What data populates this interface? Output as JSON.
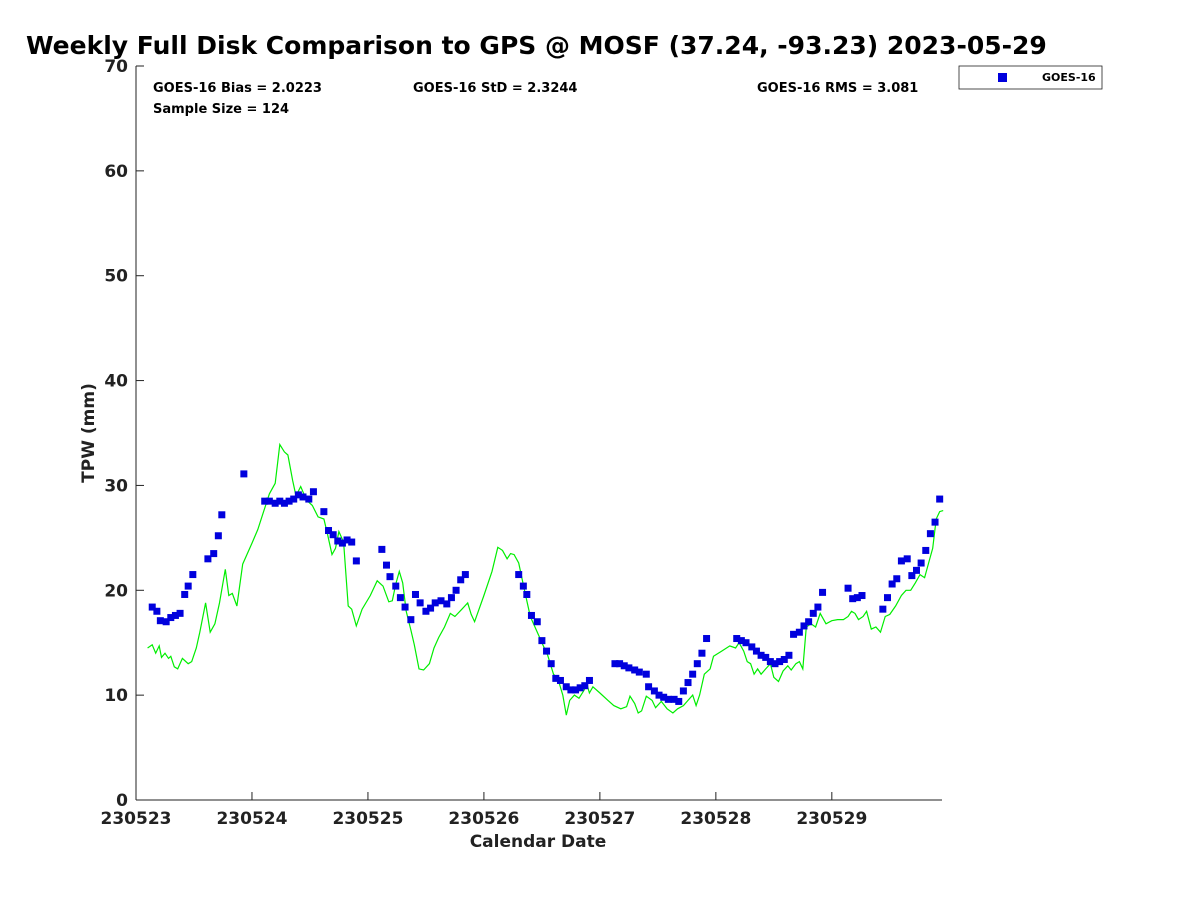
{
  "chart_data": {
    "type": "scatter",
    "title": "Weekly Full Disk Comparison to GPS @ MOSF (37.24, -93.23) 2023-05-29",
    "xlabel": "Calendar Date",
    "ylabel": "TPW (mm)",
    "ylim": [
      0,
      70
    ],
    "xlim": [
      0,
      6.95
    ],
    "yticks": [
      0,
      10,
      20,
      30,
      40,
      50,
      60,
      70
    ],
    "xticks": [
      {
        "x": 0,
        "label": "230523"
      },
      {
        "x": 1,
        "label": "230524"
      },
      {
        "x": 2,
        "label": "230525"
      },
      {
        "x": 3,
        "label": "230526"
      },
      {
        "x": 4,
        "label": "230527"
      },
      {
        "x": 5,
        "label": "230528"
      },
      {
        "x": 6,
        "label": "230529"
      }
    ],
    "stats": {
      "bias": "GOES-16 Bias = 2.0223",
      "std": "GOES-16 StD = 2.3244",
      "rms": "GOES-16 RMS = 3.081",
      "sample": "Sample Size = 124"
    },
    "legend": {
      "position": "top-right",
      "entries": [
        "GOES-16"
      ]
    },
    "grid": false,
    "colors": {
      "goes": "#0000dd",
      "gps": "#00ee00"
    },
    "series": [
      {
        "name": "GOES-16",
        "marker": "square",
        "points": [
          [
            0.14,
            18.4
          ],
          [
            0.18,
            18.0
          ],
          [
            0.21,
            17.1
          ],
          [
            0.26,
            17.0
          ],
          [
            0.3,
            17.4
          ],
          [
            0.34,
            17.6
          ],
          [
            0.38,
            17.8
          ],
          [
            0.42,
            19.6
          ],
          [
            0.45,
            20.4
          ],
          [
            0.49,
            21.5
          ],
          [
            0.62,
            23.0
          ],
          [
            0.67,
            23.5
          ],
          [
            0.71,
            25.2
          ],
          [
            0.74,
            27.2
          ],
          [
            0.93,
            31.1
          ],
          [
            1.11,
            28.5
          ],
          [
            1.15,
            28.5
          ],
          [
            1.2,
            28.3
          ],
          [
            1.24,
            28.5
          ],
          [
            1.28,
            28.3
          ],
          [
            1.32,
            28.5
          ],
          [
            1.36,
            28.7
          ],
          [
            1.4,
            29.1
          ],
          [
            1.44,
            28.9
          ],
          [
            1.49,
            28.7
          ],
          [
            1.53,
            29.4
          ],
          [
            1.62,
            27.5
          ],
          [
            1.66,
            25.7
          ],
          [
            1.7,
            25.3
          ],
          [
            1.74,
            24.7
          ],
          [
            1.78,
            24.5
          ],
          [
            1.82,
            24.8
          ],
          [
            1.86,
            24.6
          ],
          [
            1.9,
            22.8
          ],
          [
            2.12,
            23.9
          ],
          [
            2.16,
            22.4
          ],
          [
            2.19,
            21.3
          ],
          [
            2.24,
            20.4
          ],
          [
            2.28,
            19.3
          ],
          [
            2.32,
            18.4
          ],
          [
            2.37,
            17.2
          ],
          [
            2.41,
            19.6
          ],
          [
            2.45,
            18.8
          ],
          [
            2.5,
            18.0
          ],
          [
            2.54,
            18.3
          ],
          [
            2.58,
            18.8
          ],
          [
            2.63,
            19.0
          ],
          [
            2.68,
            18.7
          ],
          [
            2.72,
            19.3
          ],
          [
            2.76,
            20.0
          ],
          [
            2.8,
            21.0
          ],
          [
            2.84,
            21.5
          ],
          [
            3.3,
            21.5
          ],
          [
            3.34,
            20.4
          ],
          [
            3.37,
            19.6
          ],
          [
            3.41,
            17.6
          ],
          [
            3.46,
            17.0
          ],
          [
            3.5,
            15.2
          ],
          [
            3.54,
            14.2
          ],
          [
            3.58,
            13.0
          ],
          [
            3.62,
            11.6
          ],
          [
            3.66,
            11.4
          ],
          [
            3.71,
            10.8
          ],
          [
            3.75,
            10.5
          ],
          [
            3.79,
            10.5
          ],
          [
            3.83,
            10.7
          ],
          [
            3.87,
            10.9
          ],
          [
            3.91,
            11.4
          ],
          [
            4.13,
            13.0
          ],
          [
            4.17,
            13.0
          ],
          [
            4.21,
            12.8
          ],
          [
            4.25,
            12.6
          ],
          [
            4.3,
            12.4
          ],
          [
            4.34,
            12.2
          ],
          [
            4.4,
            12.0
          ],
          [
            4.42,
            10.8
          ],
          [
            4.47,
            10.4
          ],
          [
            4.51,
            10.0
          ],
          [
            4.55,
            9.8
          ],
          [
            4.59,
            9.6
          ],
          [
            4.64,
            9.6
          ],
          [
            4.68,
            9.4
          ],
          [
            4.72,
            10.4
          ],
          [
            4.76,
            11.2
          ],
          [
            4.8,
            12.0
          ],
          [
            4.84,
            13.0
          ],
          [
            4.88,
            14.0
          ],
          [
            4.92,
            15.4
          ],
          [
            5.18,
            15.4
          ],
          [
            5.22,
            15.2
          ],
          [
            5.26,
            15.0
          ],
          [
            5.31,
            14.6
          ],
          [
            5.35,
            14.2
          ],
          [
            5.39,
            13.8
          ],
          [
            5.43,
            13.6
          ],
          [
            5.47,
            13.2
          ],
          [
            5.51,
            13.0
          ],
          [
            5.55,
            13.2
          ],
          [
            5.59,
            13.4
          ],
          [
            5.63,
            13.8
          ],
          [
            5.67,
            15.8
          ],
          [
            5.72,
            16.0
          ],
          [
            5.76,
            16.6
          ],
          [
            5.8,
            17.0
          ],
          [
            5.84,
            17.8
          ],
          [
            5.88,
            18.4
          ],
          [
            5.92,
            19.8
          ],
          [
            6.14,
            20.2
          ],
          [
            6.18,
            19.2
          ],
          [
            6.22,
            19.3
          ],
          [
            6.26,
            19.5
          ],
          [
            6.44,
            18.2
          ],
          [
            6.48,
            19.3
          ],
          [
            6.52,
            20.6
          ],
          [
            6.56,
            21.1
          ],
          [
            6.6,
            22.8
          ],
          [
            6.65,
            23.0
          ],
          [
            6.69,
            21.4
          ],
          [
            6.73,
            21.9
          ],
          [
            6.77,
            22.6
          ],
          [
            6.81,
            23.8
          ],
          [
            6.85,
            25.4
          ],
          [
            6.89,
            26.5
          ],
          [
            6.93,
            28.7
          ]
        ]
      },
      {
        "name": "GPS",
        "marker": "line",
        "points": [
          [
            0.1,
            14.5
          ],
          [
            0.14,
            14.8
          ],
          [
            0.17,
            14.0
          ],
          [
            0.2,
            14.7
          ],
          [
            0.22,
            13.6
          ],
          [
            0.25,
            14.0
          ],
          [
            0.28,
            13.5
          ],
          [
            0.3,
            13.7
          ],
          [
            0.33,
            12.7
          ],
          [
            0.36,
            12.5
          ],
          [
            0.4,
            13.5
          ],
          [
            0.45,
            13.0
          ],
          [
            0.48,
            13.2
          ],
          [
            0.52,
            14.5
          ],
          [
            0.55,
            16.0
          ],
          [
            0.6,
            18.8
          ],
          [
            0.64,
            16.0
          ],
          [
            0.68,
            16.8
          ],
          [
            0.72,
            18.8
          ],
          [
            0.77,
            22.0
          ],
          [
            0.8,
            19.5
          ],
          [
            0.83,
            19.7
          ],
          [
            0.87,
            18.5
          ],
          [
            0.92,
            22.5
          ],
          [
            1.0,
            24.5
          ],
          [
            1.05,
            25.8
          ],
          [
            1.1,
            27.5
          ],
          [
            1.15,
            29.2
          ],
          [
            1.2,
            30.2
          ],
          [
            1.24,
            33.9
          ],
          [
            1.28,
            33.2
          ],
          [
            1.31,
            32.9
          ],
          [
            1.35,
            30.5
          ],
          [
            1.38,
            29.0
          ],
          [
            1.42,
            29.9
          ],
          [
            1.47,
            28.6
          ],
          [
            1.52,
            28.1
          ],
          [
            1.57,
            27.0
          ],
          [
            1.62,
            26.8
          ],
          [
            1.65,
            25.4
          ],
          [
            1.69,
            23.4
          ],
          [
            1.72,
            24.0
          ],
          [
            1.75,
            25.6
          ],
          [
            1.79,
            24.6
          ],
          [
            1.83,
            18.5
          ],
          [
            1.86,
            18.2
          ],
          [
            1.9,
            16.6
          ],
          [
            1.95,
            18.2
          ],
          [
            2.02,
            19.5
          ],
          [
            2.08,
            20.9
          ],
          [
            2.13,
            20.4
          ],
          [
            2.18,
            18.9
          ],
          [
            2.21,
            19.0
          ],
          [
            2.24,
            20.6
          ],
          [
            2.27,
            21.8
          ],
          [
            2.3,
            20.7
          ],
          [
            2.33,
            18.0
          ],
          [
            2.37,
            16.2
          ],
          [
            2.4,
            14.8
          ],
          [
            2.44,
            12.5
          ],
          [
            2.48,
            12.4
          ],
          [
            2.53,
            13.0
          ],
          [
            2.57,
            14.5
          ],
          [
            2.61,
            15.5
          ],
          [
            2.66,
            16.5
          ],
          [
            2.71,
            17.8
          ],
          [
            2.75,
            17.5
          ],
          [
            2.81,
            18.2
          ],
          [
            2.86,
            18.8
          ],
          [
            2.89,
            17.7
          ],
          [
            2.92,
            17.0
          ],
          [
            3.0,
            19.5
          ],
          [
            3.07,
            21.8
          ],
          [
            3.12,
            24.1
          ],
          [
            3.16,
            23.8
          ],
          [
            3.2,
            23.0
          ],
          [
            3.23,
            23.5
          ],
          [
            3.26,
            23.4
          ],
          [
            3.3,
            22.6
          ],
          [
            3.35,
            20.0
          ],
          [
            3.4,
            17.5
          ],
          [
            3.46,
            16.0
          ],
          [
            3.5,
            15.0
          ],
          [
            3.55,
            13.8
          ],
          [
            3.6,
            12.0
          ],
          [
            3.64,
            11.5
          ],
          [
            3.68,
            10.0
          ],
          [
            3.71,
            8.1
          ],
          [
            3.74,
            9.5
          ],
          [
            3.78,
            10.0
          ],
          [
            3.82,
            9.7
          ],
          [
            3.86,
            10.4
          ],
          [
            3.89,
            11.0
          ],
          [
            3.91,
            10.2
          ],
          [
            3.94,
            10.8
          ],
          [
            4.0,
            10.2
          ],
          [
            4.07,
            9.5
          ],
          [
            4.12,
            9.0
          ],
          [
            4.18,
            8.7
          ],
          [
            4.23,
            8.9
          ],
          [
            4.26,
            9.9
          ],
          [
            4.3,
            9.2
          ],
          [
            4.33,
            8.3
          ],
          [
            4.36,
            8.5
          ],
          [
            4.4,
            9.9
          ],
          [
            4.45,
            9.5
          ],
          [
            4.48,
            8.8
          ],
          [
            4.53,
            9.4
          ],
          [
            4.58,
            8.7
          ],
          [
            4.63,
            8.3
          ],
          [
            4.67,
            8.7
          ],
          [
            4.72,
            9.0
          ],
          [
            4.76,
            9.5
          ],
          [
            4.8,
            10.0
          ],
          [
            4.83,
            9.0
          ],
          [
            4.86,
            10.0
          ],
          [
            4.9,
            12.0
          ],
          [
            4.95,
            12.5
          ],
          [
            4.98,
            13.7
          ],
          [
            5.05,
            14.2
          ],
          [
            5.12,
            14.7
          ],
          [
            5.17,
            14.5
          ],
          [
            5.2,
            15.0
          ],
          [
            5.24,
            14.2
          ],
          [
            5.27,
            13.2
          ],
          [
            5.3,
            13.0
          ],
          [
            5.33,
            12.0
          ],
          [
            5.36,
            12.5
          ],
          [
            5.39,
            12.0
          ],
          [
            5.43,
            12.5
          ],
          [
            5.47,
            13.0
          ],
          [
            5.5,
            11.7
          ],
          [
            5.54,
            11.3
          ],
          [
            5.58,
            12.3
          ],
          [
            5.62,
            12.8
          ],
          [
            5.65,
            12.4
          ],
          [
            5.69,
            13.0
          ],
          [
            5.72,
            13.2
          ],
          [
            5.75,
            12.5
          ],
          [
            5.78,
            16.5
          ],
          [
            5.82,
            16.8
          ],
          [
            5.86,
            16.5
          ],
          [
            5.9,
            17.8
          ],
          [
            5.95,
            16.8
          ],
          [
            6.0,
            17.1
          ],
          [
            6.05,
            17.2
          ],
          [
            6.1,
            17.2
          ],
          [
            6.14,
            17.5
          ],
          [
            6.17,
            18.0
          ],
          [
            6.2,
            17.8
          ],
          [
            6.23,
            17.2
          ],
          [
            6.27,
            17.5
          ],
          [
            6.3,
            18.0
          ],
          [
            6.34,
            16.3
          ],
          [
            6.38,
            16.5
          ],
          [
            6.42,
            16.0
          ],
          [
            6.46,
            17.5
          ],
          [
            6.5,
            17.7
          ],
          [
            6.55,
            18.5
          ],
          [
            6.6,
            19.5
          ],
          [
            6.64,
            20.0
          ],
          [
            6.68,
            20.0
          ],
          [
            6.72,
            20.7
          ],
          [
            6.76,
            21.5
          ],
          [
            6.8,
            21.2
          ],
          [
            6.84,
            22.8
          ],
          [
            6.87,
            24.0
          ],
          [
            6.9,
            26.8
          ],
          [
            6.93,
            27.5
          ],
          [
            6.96,
            27.6
          ]
        ]
      }
    ]
  }
}
